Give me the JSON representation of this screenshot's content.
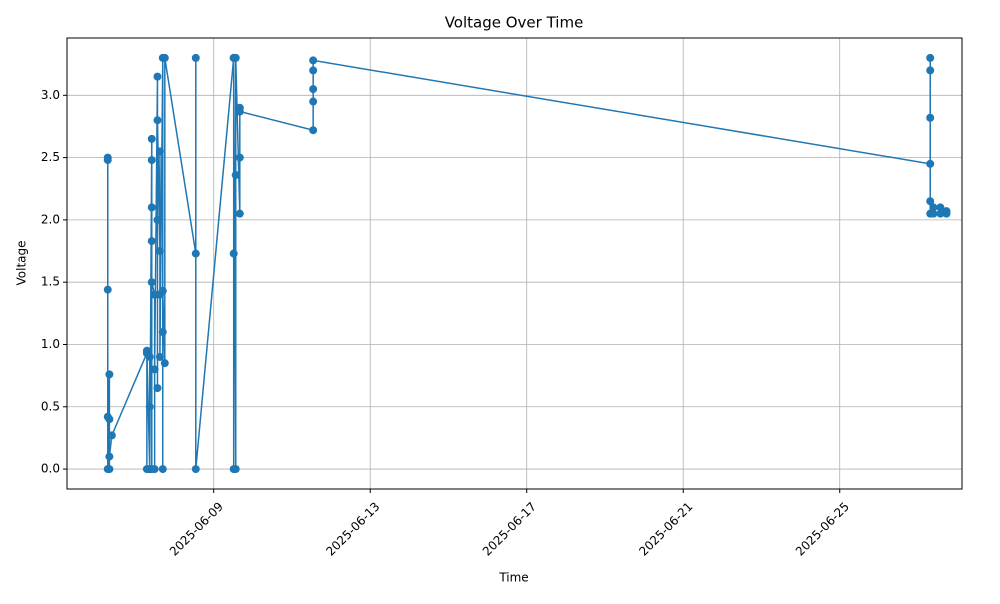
{
  "chart_data": {
    "type": "line",
    "title": "Voltage Over Time",
    "x_label": "Time",
    "y_label": "Voltage",
    "x": [
      "2025-06-06T07:00",
      "2025-06-06T07:00",
      "2025-06-06T07:00",
      "2025-06-06T07:00",
      "2025-06-06T07:00",
      "2025-06-06T08:00",
      "2025-06-06T08:00",
      "2025-06-06T08:00",
      "2025-06-06T08:00",
      "2025-06-06T09:30",
      "2025-06-07T07:00",
      "2025-06-07T07:00",
      "2025-06-07T07:00",
      "2025-06-07T08:45",
      "2025-06-07T08:45",
      "2025-06-07T08:45",
      "2025-06-07T08:45",
      "2025-06-07T10:00",
      "2025-06-07T10:00",
      "2025-06-07T10:00",
      "2025-06-07T10:00",
      "2025-06-07T10:00",
      "2025-06-07T10:00",
      "2025-06-07T11:45",
      "2025-06-07T11:45",
      "2025-06-07T11:45",
      "2025-06-07T13:30",
      "2025-06-07T13:30",
      "2025-06-07T13:30",
      "2025-06-07T13:30",
      "2025-06-07T15:00",
      "2025-06-07T15:00",
      "2025-06-07T15:00",
      "2025-06-07T15:00",
      "2025-06-07T16:45",
      "2025-06-07T16:45",
      "2025-06-07T16:45",
      "2025-06-07T16:45",
      "2025-06-07T18:00",
      "2025-06-07T18:00",
      "2025-06-08T13:00",
      "2025-06-08T13:00",
      "2025-06-08T13:00",
      "2025-06-09T12:15",
      "2025-06-09T12:15",
      "2025-06-09T12:15",
      "2025-06-09T12:15",
      "2025-06-09T13:30",
      "2025-06-09T13:30",
      "2025-06-09T13:30",
      "2025-06-09T16:00",
      "2025-06-09T16:00",
      "2025-06-09T16:00",
      "2025-06-09T16:00",
      "2025-06-11T13:00",
      "2025-06-11T13:00",
      "2025-06-11T13:00",
      "2025-06-11T13:00",
      "2025-06-11T13:00",
      "2025-06-27T07:30",
      "2025-06-27T07:30",
      "2025-06-27T07:30",
      "2025-06-27T07:30",
      "2025-06-27T07:30",
      "2025-06-27T07:30",
      "2025-06-27T09:30",
      "2025-06-27T09:30",
      "2025-06-27T13:45",
      "2025-06-27T13:45",
      "2025-06-27T17:30",
      "2025-06-27T17:30"
    ],
    "series": [
      {
        "color": "#1f77b4",
        "values": [
          2.5,
          2.48,
          1.44,
          0.42,
          0.0,
          0.76,
          0.0,
          0.4,
          0.1,
          0.27,
          0.93,
          0.0,
          0.95,
          0.0,
          0.9,
          0.5,
          0.0,
          2.65,
          2.1,
          1.83,
          0.0,
          2.48,
          1.5,
          1.4,
          0.0,
          0.8,
          3.15,
          2.0,
          0.65,
          2.8,
          1.75,
          2.55,
          1.4,
          0.9,
          3.3,
          0.0,
          1.1,
          1.43,
          0.85,
          3.3,
          1.73,
          3.3,
          0.0,
          3.3,
          0.0,
          1.73,
          3.3,
          0.0,
          2.36,
          3.3,
          2.05,
          2.9,
          2.5,
          2.87,
          2.72,
          3.2,
          2.95,
          3.05,
          3.28,
          2.45,
          3.3,
          2.05,
          3.2,
          2.82,
          2.15,
          2.05,
          2.1,
          2.1,
          2.05,
          2.07,
          2.05
        ]
      }
    ],
    "xlim": [
      "2025-06-05T06:00",
      "2025-06-28T03:00"
    ],
    "xticks": [
      "2025-06-09",
      "2025-06-13",
      "2025-06-17",
      "2025-06-21",
      "2025-06-25"
    ],
    "ylim": [
      -0.16,
      3.46
    ],
    "yticks": [
      {
        "value": 0,
        "label": "0.0"
      },
      {
        "value": 0.5,
        "label": "0.5"
      },
      {
        "value": 1,
        "label": "1.0"
      },
      {
        "value": 1.5,
        "label": "1.5"
      },
      {
        "value": 2,
        "label": "2.0"
      },
      {
        "value": 2.5,
        "label": "2.5"
      },
      {
        "value": 3,
        "label": "3.0"
      }
    ],
    "grid": true
  }
}
